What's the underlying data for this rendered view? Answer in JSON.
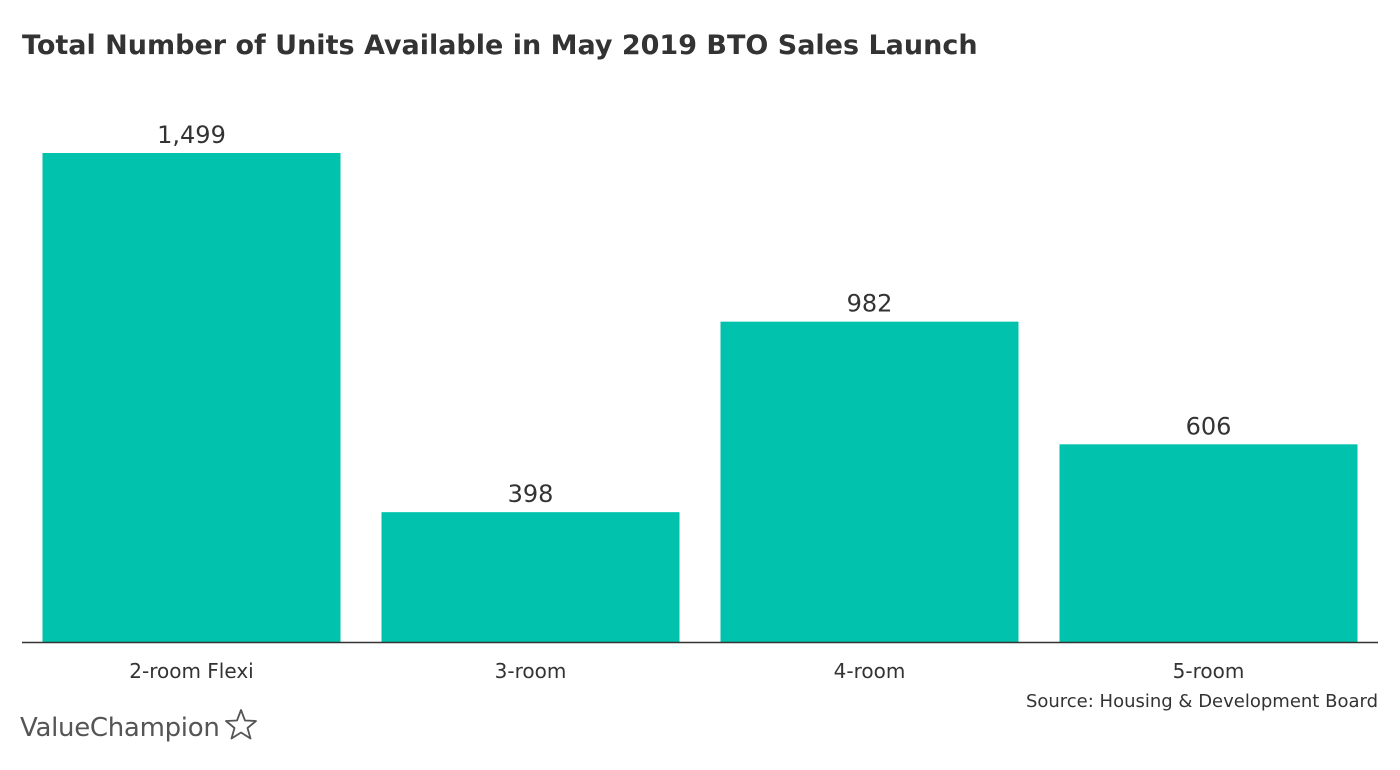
{
  "chart_data": {
    "type": "bar",
    "title": "Total Number of Units Available in May 2019 BTO Sales Launch",
    "categories": [
      "2-room Flexi",
      "3-room",
      "4-room",
      "5-room"
    ],
    "values": [
      1499,
      398,
      982,
      606
    ],
    "value_labels": [
      "1,499",
      "398",
      "982",
      "606"
    ],
    "xlabel": "",
    "ylabel": "",
    "ylim": [
      0,
      1499
    ],
    "grid": false,
    "bar_color": "#00c2ad",
    "axis_color": "#333333"
  },
  "source": "Source: Housing & Development Board",
  "brand": {
    "name": "ValueChampion",
    "icon": "star-outline-icon"
  }
}
